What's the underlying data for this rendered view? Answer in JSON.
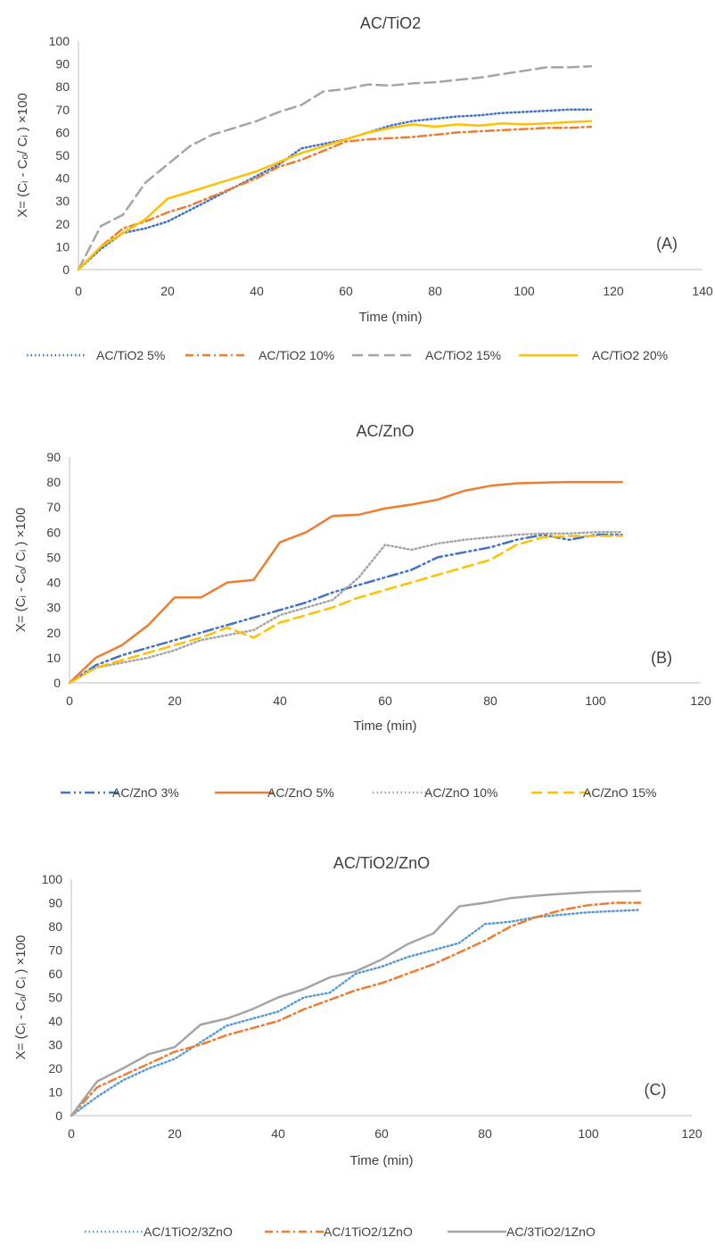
{
  "chart_data": [
    {
      "type": "line",
      "title": "AC/TiO2",
      "panel_label": "(A)",
      "xlabel": "Time (min)",
      "ylabel": "X= (Cᵢ - Cₒ/ Cᵢ ) ×100",
      "xlim": [
        0,
        140
      ],
      "ylim": [
        0,
        100
      ],
      "x_ticks": [
        "0",
        "20",
        "40",
        "60",
        "80",
        "100",
        "120",
        "140"
      ],
      "y_ticks": [
        "0",
        "10",
        "20",
        "30",
        "40",
        "50",
        "60",
        "70",
        "80",
        "90",
        "100"
      ],
      "grid": false,
      "legend_position": "bottom",
      "series": [
        {
          "name": "AC/TiO2 5%",
          "color": "#4472C4",
          "dash": "dot",
          "x": [
            0,
            5,
            10,
            15,
            20,
            25,
            30,
            35,
            40,
            45,
            50,
            55,
            60,
            65,
            70,
            75,
            80,
            85,
            90,
            95,
            100,
            105,
            110,
            115
          ],
          "y": [
            0,
            9,
            16,
            18,
            21,
            26,
            31,
            36,
            41,
            46,
            53,
            55,
            57,
            60,
            63,
            65,
            66,
            67,
            67.5,
            68.5,
            69,
            69.5,
            70,
            70
          ]
        },
        {
          "name": "AC/TiO2 10%",
          "color": "#ED7D31",
          "dash": "dashdot",
          "x": [
            0,
            5,
            10,
            15,
            20,
            25,
            30,
            35,
            40,
            45,
            50,
            55,
            60,
            65,
            70,
            75,
            80,
            85,
            90,
            95,
            100,
            105,
            110,
            115
          ],
          "y": [
            0,
            10,
            18,
            21,
            25,
            28,
            32,
            36,
            40,
            45,
            48,
            52,
            56,
            57,
            57.5,
            58,
            59,
            60,
            60.5,
            61,
            61.5,
            62,
            62,
            62.5
          ]
        },
        {
          "name": "AC/TiO2 15%",
          "color": "#A5A5A5",
          "dash": "longdash",
          "x": [
            0,
            5,
            10,
            15,
            20,
            25,
            30,
            35,
            40,
            45,
            50,
            55,
            60,
            65,
            70,
            75,
            80,
            85,
            90,
            95,
            100,
            105,
            110,
            115
          ],
          "y": [
            0,
            19,
            24,
            38,
            46,
            54,
            59,
            62,
            65,
            69,
            72,
            78,
            79,
            81,
            80.5,
            81.5,
            82,
            83,
            84,
            85.5,
            87,
            88.5,
            88.5,
            89
          ]
        },
        {
          "name": "AC/TiO2 20%",
          "color": "#FFC000",
          "dash": "solid",
          "x": [
            0,
            5,
            10,
            15,
            20,
            25,
            30,
            35,
            40,
            45,
            50,
            55,
            60,
            65,
            70,
            75,
            80,
            85,
            90,
            95,
            100,
            105,
            110,
            115
          ],
          "y": [
            0,
            10,
            16,
            22,
            31,
            34,
            37,
            40,
            43,
            47,
            51,
            54,
            57,
            60,
            62,
            63.5,
            62.5,
            63.5,
            63,
            64,
            63.5,
            64,
            64.5,
            65
          ]
        }
      ]
    },
    {
      "type": "line",
      "title": "AC/ZnO",
      "panel_label": "(B)",
      "xlabel": "Time (min)",
      "ylabel": "X= (Cᵢ - Cₒ/ Cᵢ ) ×100",
      "xlim": [
        0,
        120
      ],
      "ylim": [
        0,
        90
      ],
      "x_ticks": [
        "0",
        "20",
        "40",
        "60",
        "80",
        "100",
        "120"
      ],
      "y_ticks": [
        "0",
        "10",
        "20",
        "30",
        "40",
        "50",
        "60",
        "70",
        "80",
        "90"
      ],
      "grid": false,
      "legend_position": "bottom",
      "series": [
        {
          "name": "AC/ZnO 3%",
          "color": "#4472C4",
          "dash": "dashdotdot",
          "x": [
            0,
            5,
            10,
            15,
            20,
            25,
            30,
            35,
            40,
            45,
            50,
            55,
            60,
            65,
            70,
            75,
            80,
            85,
            90,
            95,
            100,
            105
          ],
          "y": [
            0,
            7,
            11,
            14,
            17,
            20,
            23,
            26,
            29,
            32,
            36,
            39,
            42,
            45,
            50,
            52,
            54,
            57,
            59,
            57,
            59,
            59
          ]
        },
        {
          "name": "AC/ZnO 5%",
          "color": "#ED7D31",
          "dash": "solid",
          "x": [
            0,
            5,
            10,
            15,
            20,
            25,
            30,
            35,
            40,
            45,
            50,
            55,
            60,
            65,
            70,
            75,
            80,
            85,
            90,
            95,
            100,
            105
          ],
          "y": [
            0,
            10,
            15,
            23,
            34,
            34,
            40,
            41,
            56,
            60,
            66.5,
            67,
            69.5,
            71,
            73,
            76.5,
            78.5,
            79.5,
            79.8,
            80,
            80,
            80
          ]
        },
        {
          "name": "AC/ZnO 10%",
          "color": "#A5A5A5",
          "dash": "dot",
          "x": [
            0,
            5,
            10,
            15,
            20,
            25,
            30,
            35,
            40,
            45,
            50,
            55,
            60,
            65,
            70,
            75,
            80,
            85,
            90,
            95,
            100,
            105
          ],
          "y": [
            0,
            6,
            8,
            10,
            13,
            17,
            19,
            21,
            27,
            30,
            33,
            42,
            55,
            53,
            55.5,
            57,
            58,
            59,
            59.5,
            59.5,
            60,
            60
          ]
        },
        {
          "name": "AC/ZnO 15%",
          "color": "#FFC000",
          "dash": "longdash",
          "x": [
            0,
            5,
            10,
            15,
            20,
            25,
            30,
            35,
            40,
            45,
            50,
            55,
            60,
            65,
            70,
            75,
            80,
            85,
            90,
            95,
            100,
            105
          ],
          "y": [
            0,
            6,
            9,
            12,
            15,
            18,
            22,
            18,
            24,
            27,
            30,
            34,
            37,
            40,
            43,
            46,
            49,
            55,
            58,
            58.5,
            58.5,
            58.5
          ]
        }
      ]
    },
    {
      "type": "line",
      "title": "AC/TiO2/ZnO",
      "panel_label": "(C)",
      "xlabel": "Time (min)",
      "ylabel": "X= (Cᵢ - Cₒ/ Cᵢ ) ×100",
      "xlim": [
        0,
        120
      ],
      "ylim": [
        0,
        100
      ],
      "x_ticks": [
        "0",
        "20",
        "40",
        "60",
        "80",
        "100",
        "120"
      ],
      "y_ticks": [
        "0",
        "10",
        "20",
        "30",
        "40",
        "50",
        "60",
        "70",
        "80",
        "90",
        "100"
      ],
      "grid": false,
      "legend_position": "bottom",
      "series": [
        {
          "name": "AC/1TiO2/3ZnO",
          "color": "#5B9BD5",
          "dash": "dot",
          "x": [
            0,
            5,
            10,
            15,
            20,
            25,
            30,
            35,
            40,
            45,
            50,
            55,
            60,
            65,
            70,
            75,
            80,
            85,
            90,
            95,
            100,
            105,
            110
          ],
          "y": [
            0,
            8,
            15,
            20,
            24,
            31,
            38,
            41,
            44,
            50,
            52,
            60,
            63,
            67,
            70,
            73,
            81,
            82,
            84,
            85,
            86,
            86.5,
            87
          ]
        },
        {
          "name": "AC/1TiO2/1ZnO",
          "color": "#ED7D31",
          "dash": "dashdot",
          "x": [
            0,
            5,
            10,
            15,
            20,
            25,
            30,
            35,
            40,
            45,
            50,
            55,
            60,
            65,
            70,
            75,
            80,
            85,
            90,
            95,
            100,
            105,
            110
          ],
          "y": [
            0,
            12,
            17,
            22,
            27,
            30,
            34,
            37,
            40,
            45,
            49,
            53,
            56,
            60,
            64,
            69,
            74,
            80,
            84,
            87,
            89,
            90,
            90
          ]
        },
        {
          "name": "AC/3TiO2/1ZnO",
          "color": "#A5A5A5",
          "dash": "solid",
          "x": [
            0,
            5,
            10,
            15,
            20,
            25,
            30,
            35,
            40,
            45,
            50,
            55,
            60,
            65,
            70,
            75,
            80,
            85,
            90,
            95,
            100,
            105,
            110
          ],
          "y": [
            0,
            14.5,
            20,
            26,
            29,
            38.5,
            41,
            45,
            50,
            53.5,
            58.5,
            61,
            66,
            72.5,
            77,
            88.5,
            90,
            92,
            93,
            93.8,
            94.5,
            94.8,
            95
          ]
        }
      ]
    }
  ]
}
